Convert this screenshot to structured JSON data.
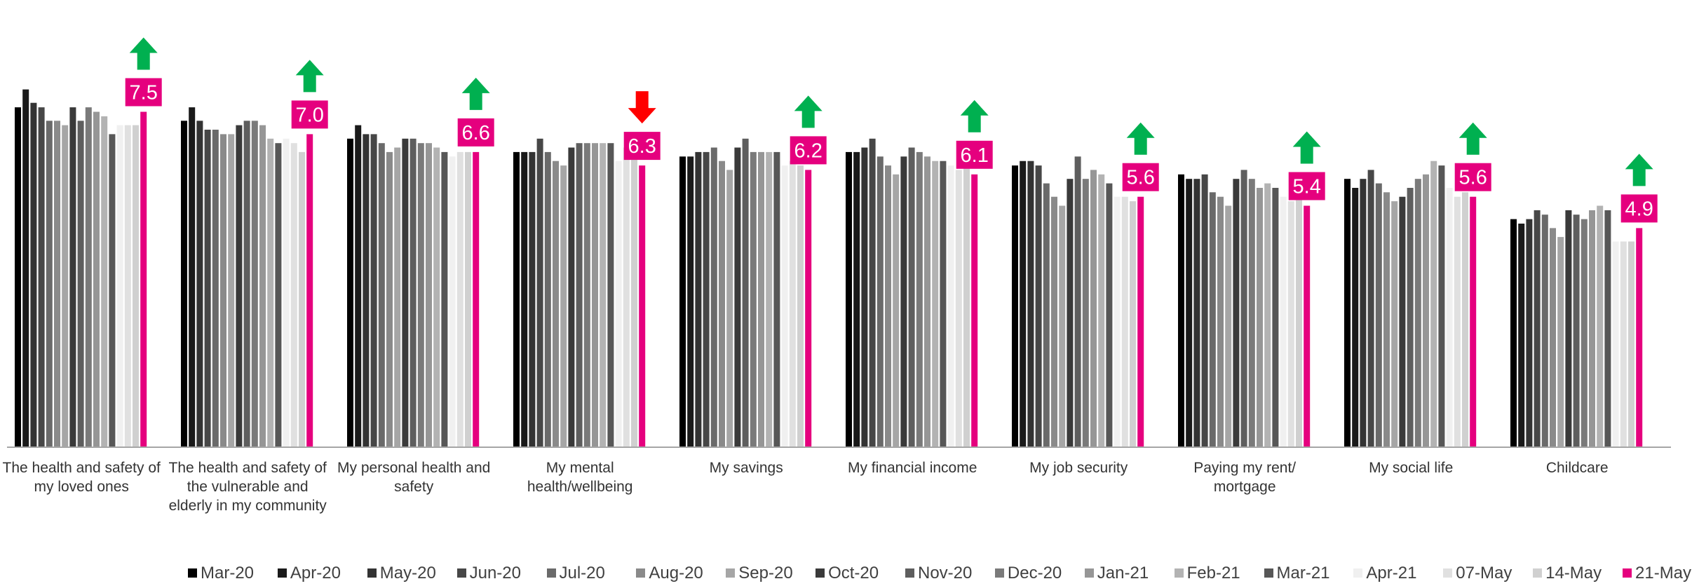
{
  "chart_data": {
    "type": "bar",
    "ylim": [
      0,
      10
    ],
    "grid": false,
    "legend_position": "bottom",
    "categories": [
      "The health and safety of my loved ones",
      "The health and safety of the vulnerable and elderly in my community",
      "My personal health and safety",
      "My mental health/wellbeing",
      "My savings",
      "My financial income",
      "My job security",
      "Paying my rent/ mortgage",
      "My social life",
      "Childcare"
    ],
    "series": [
      {
        "name": "Mar-20",
        "color": "#000000",
        "values": [
          7.6,
          7.3,
          6.9,
          6.6,
          6.5,
          6.6,
          6.3,
          6.1,
          6.0,
          5.1
        ]
      },
      {
        "name": "Apr-20",
        "color": "#1a1a1a",
        "values": [
          8.0,
          7.6,
          7.2,
          6.6,
          6.5,
          6.6,
          6.4,
          6.0,
          5.8,
          5.0
        ]
      },
      {
        "name": "May-20",
        "color": "#333333",
        "values": [
          7.7,
          7.3,
          7.0,
          6.6,
          6.6,
          6.7,
          6.4,
          6.0,
          6.0,
          5.1
        ]
      },
      {
        "name": "Jun-20",
        "color": "#474747",
        "values": [
          7.6,
          7.1,
          7.0,
          6.9,
          6.6,
          6.9,
          6.3,
          6.1,
          6.2,
          5.3
        ]
      },
      {
        "name": "Jul-20",
        "color": "#6a6a6a",
        "values": [
          7.3,
          7.1,
          6.8,
          6.6,
          6.7,
          6.5,
          5.9,
          5.7,
          5.9,
          5.2
        ]
      },
      {
        "name": "Aug-20",
        "color": "#8a8a8a",
        "values": [
          7.3,
          7.0,
          6.6,
          6.4,
          6.4,
          6.3,
          5.6,
          5.6,
          5.7,
          4.9
        ]
      },
      {
        "name": "Sep-20",
        "color": "#a6a6a6",
        "values": [
          7.2,
          7.0,
          6.7,
          6.3,
          6.2,
          6.1,
          5.4,
          5.4,
          5.5,
          4.7
        ]
      },
      {
        "name": "Oct-20",
        "color": "#3a3a3a",
        "values": [
          7.6,
          7.2,
          6.9,
          6.7,
          6.7,
          6.5,
          6.0,
          6.0,
          5.6,
          5.3
        ]
      },
      {
        "name": "Nov-20",
        "color": "#5e5e5e",
        "values": [
          7.3,
          7.3,
          6.9,
          6.8,
          6.9,
          6.7,
          6.5,
          6.2,
          5.8,
          5.2
        ]
      },
      {
        "name": "Dec-20",
        "color": "#7a7a7a",
        "values": [
          7.6,
          7.3,
          6.8,
          6.8,
          6.6,
          6.6,
          6.0,
          6.0,
          6.0,
          5.1
        ]
      },
      {
        "name": "Jan-21",
        "color": "#969696",
        "values": [
          7.5,
          7.2,
          6.8,
          6.8,
          6.6,
          6.5,
          6.2,
          5.8,
          6.1,
          5.3
        ]
      },
      {
        "name": "Feb-21",
        "color": "#b3b3b3",
        "values": [
          7.4,
          6.9,
          6.7,
          6.8,
          6.6,
          6.4,
          6.1,
          5.9,
          6.4,
          5.4
        ]
      },
      {
        "name": "Mar-21",
        "color": "#575757",
        "values": [
          7.0,
          6.8,
          6.6,
          6.8,
          6.6,
          6.4,
          5.9,
          5.8,
          6.3,
          5.3
        ]
      },
      {
        "name": "Apr-21",
        "color": "#f0f0f0",
        "values": [
          7.2,
          6.9,
          6.5,
          6.4,
          6.3,
          6.3,
          5.6,
          5.6,
          5.8,
          4.6
        ]
      },
      {
        "name": "07-May",
        "color": "#e0e0e0",
        "values": [
          7.2,
          6.8,
          6.6,
          6.7,
          6.4,
          6.2,
          5.6,
          5.5,
          5.6,
          4.6
        ]
      },
      {
        "name": "14-May",
        "color": "#d0d0d0",
        "values": [
          7.2,
          6.6,
          6.6,
          6.7,
          6.3,
          6.3,
          5.5,
          5.6,
          5.7,
          4.6
        ]
      },
      {
        "name": "21-May",
        "color": "#e5007e",
        "values": [
          7.5,
          7.0,
          6.6,
          6.3,
          6.2,
          6.1,
          5.6,
          5.4,
          5.6,
          4.9
        ]
      }
    ],
    "data_labels": [
      "7.5",
      "7.0",
      "6.6",
      "6.3",
      "6.2",
      "6.1",
      "5.6",
      "5.4",
      "5.6",
      "4.9"
    ],
    "trend_arrows": [
      "up",
      "up",
      "up",
      "down",
      "up",
      "up",
      "up",
      "up",
      "up",
      "up"
    ],
    "colors": {
      "highlight": "#e5007e",
      "arrow_up": "#00b050",
      "arrow_down": "#ff0000",
      "axis": "#a6a6a6"
    }
  }
}
